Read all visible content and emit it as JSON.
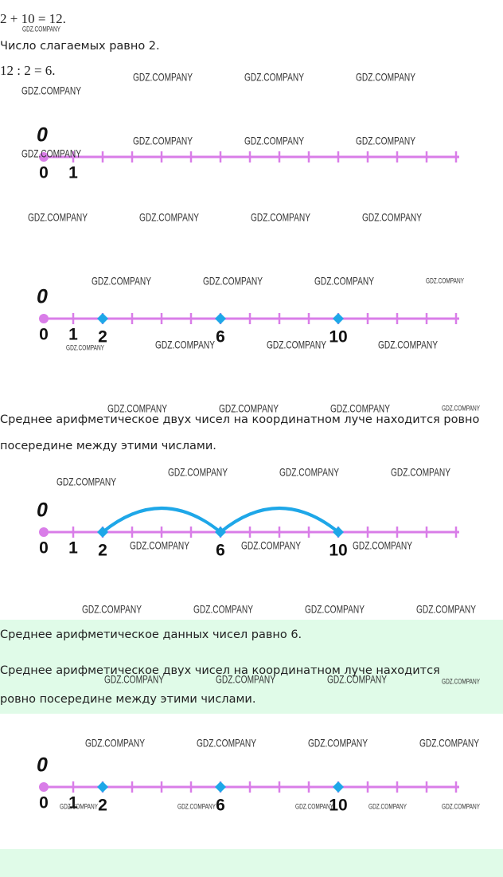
{
  "watermark": "GDZ.COMPANY",
  "lines": [
    "2 + 10 = 12.",
    "Число слагаемых равно 2.",
    "12 : 2 = 6."
  ],
  "paragraph": [
    "Среднее арифметическое двух чисел на координатном луче находится ровно",
    "посередине между этими числами."
  ],
  "answer": [
    "Среднее арифметическое данных чисел равно 6.",
    "Среднее арифметическое двух чисел на координатном луче находится",
    "ровно посередине между этими числами."
  ],
  "number_lines": [
    {
      "origin": "0",
      "labels": [
        0,
        1
      ]
    },
    {
      "origin": "0",
      "labels": [
        0,
        1,
        2,
        6,
        10
      ],
      "points": [
        2,
        6,
        10
      ]
    },
    {
      "origin": "0",
      "labels": [
        0,
        1,
        2,
        6,
        10
      ],
      "points": [
        2,
        6,
        10
      ],
      "arcs": [
        [
          2,
          6
        ],
        [
          6,
          10
        ]
      ]
    },
    {
      "origin": "0",
      "labels": [
        0,
        1,
        2,
        6,
        10
      ],
      "points": [
        2,
        6,
        10
      ]
    }
  ]
}
